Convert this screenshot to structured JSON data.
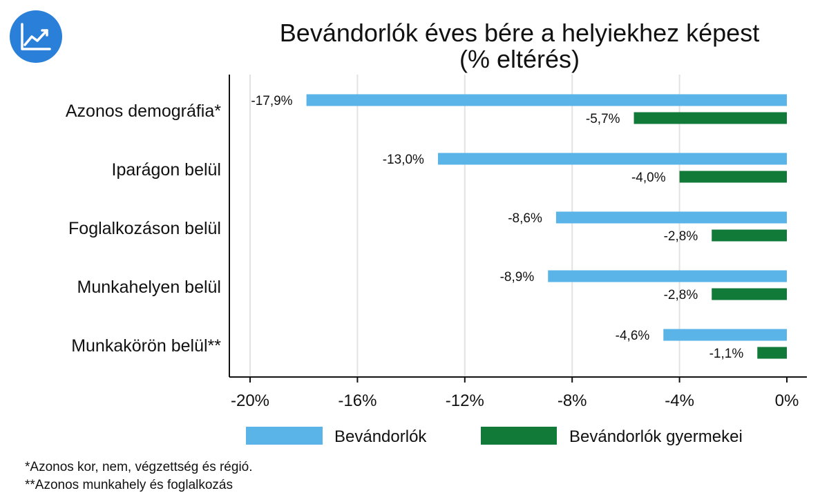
{
  "colors": {
    "immigrants": "#5ab4e8",
    "children": "#127a38",
    "logo_bg": "#2a7fd9",
    "grid": "#e2e2e2",
    "axis": "#111111"
  },
  "logo": {
    "icon": "line-chart-icon"
  },
  "footnotes": [
    "*Azonos kor, nem, végzettség és régió.",
    "**Azonos munkahely és foglalkozás"
  ],
  "chart_data": {
    "type": "bar",
    "orientation": "horizontal",
    "title_lines": [
      "Bevándorlók éves bére a helyiekhez képest",
      "(% eltérés)"
    ],
    "categories": [
      "Azonos demográfia*",
      "Iparágon belül",
      "Foglalkozáson belül",
      "Munkahelyen belül",
      "Munkakörön belül**"
    ],
    "series": [
      {
        "name": "Bevándorlók",
        "values": [
          -17.9,
          -13.0,
          -8.6,
          -8.9,
          -4.6
        ],
        "labels": [
          "-17,9%",
          "-13,0%",
          "-8,6%",
          "-8,9%",
          "-4,6%"
        ],
        "color": "#5ab4e8"
      },
      {
        "name": "Bevándorlók gyermekei",
        "values": [
          -5.7,
          -4.0,
          -2.8,
          -2.8,
          -1.1
        ],
        "labels": [
          "-5,7%",
          "-4,0%",
          "-2,8%",
          "-2,8%",
          "-1,1%"
        ],
        "color": "#127a38"
      }
    ],
    "xlim": [
      -20.7,
      0.7
    ],
    "x_ticks": [
      -20,
      -16,
      -12,
      -8,
      -4,
      0
    ],
    "x_tick_labels": [
      "-20%",
      "-16%",
      "-12%",
      "-8%",
      "-4%",
      "0%"
    ],
    "grid": true,
    "legend_position": "bottom"
  }
}
